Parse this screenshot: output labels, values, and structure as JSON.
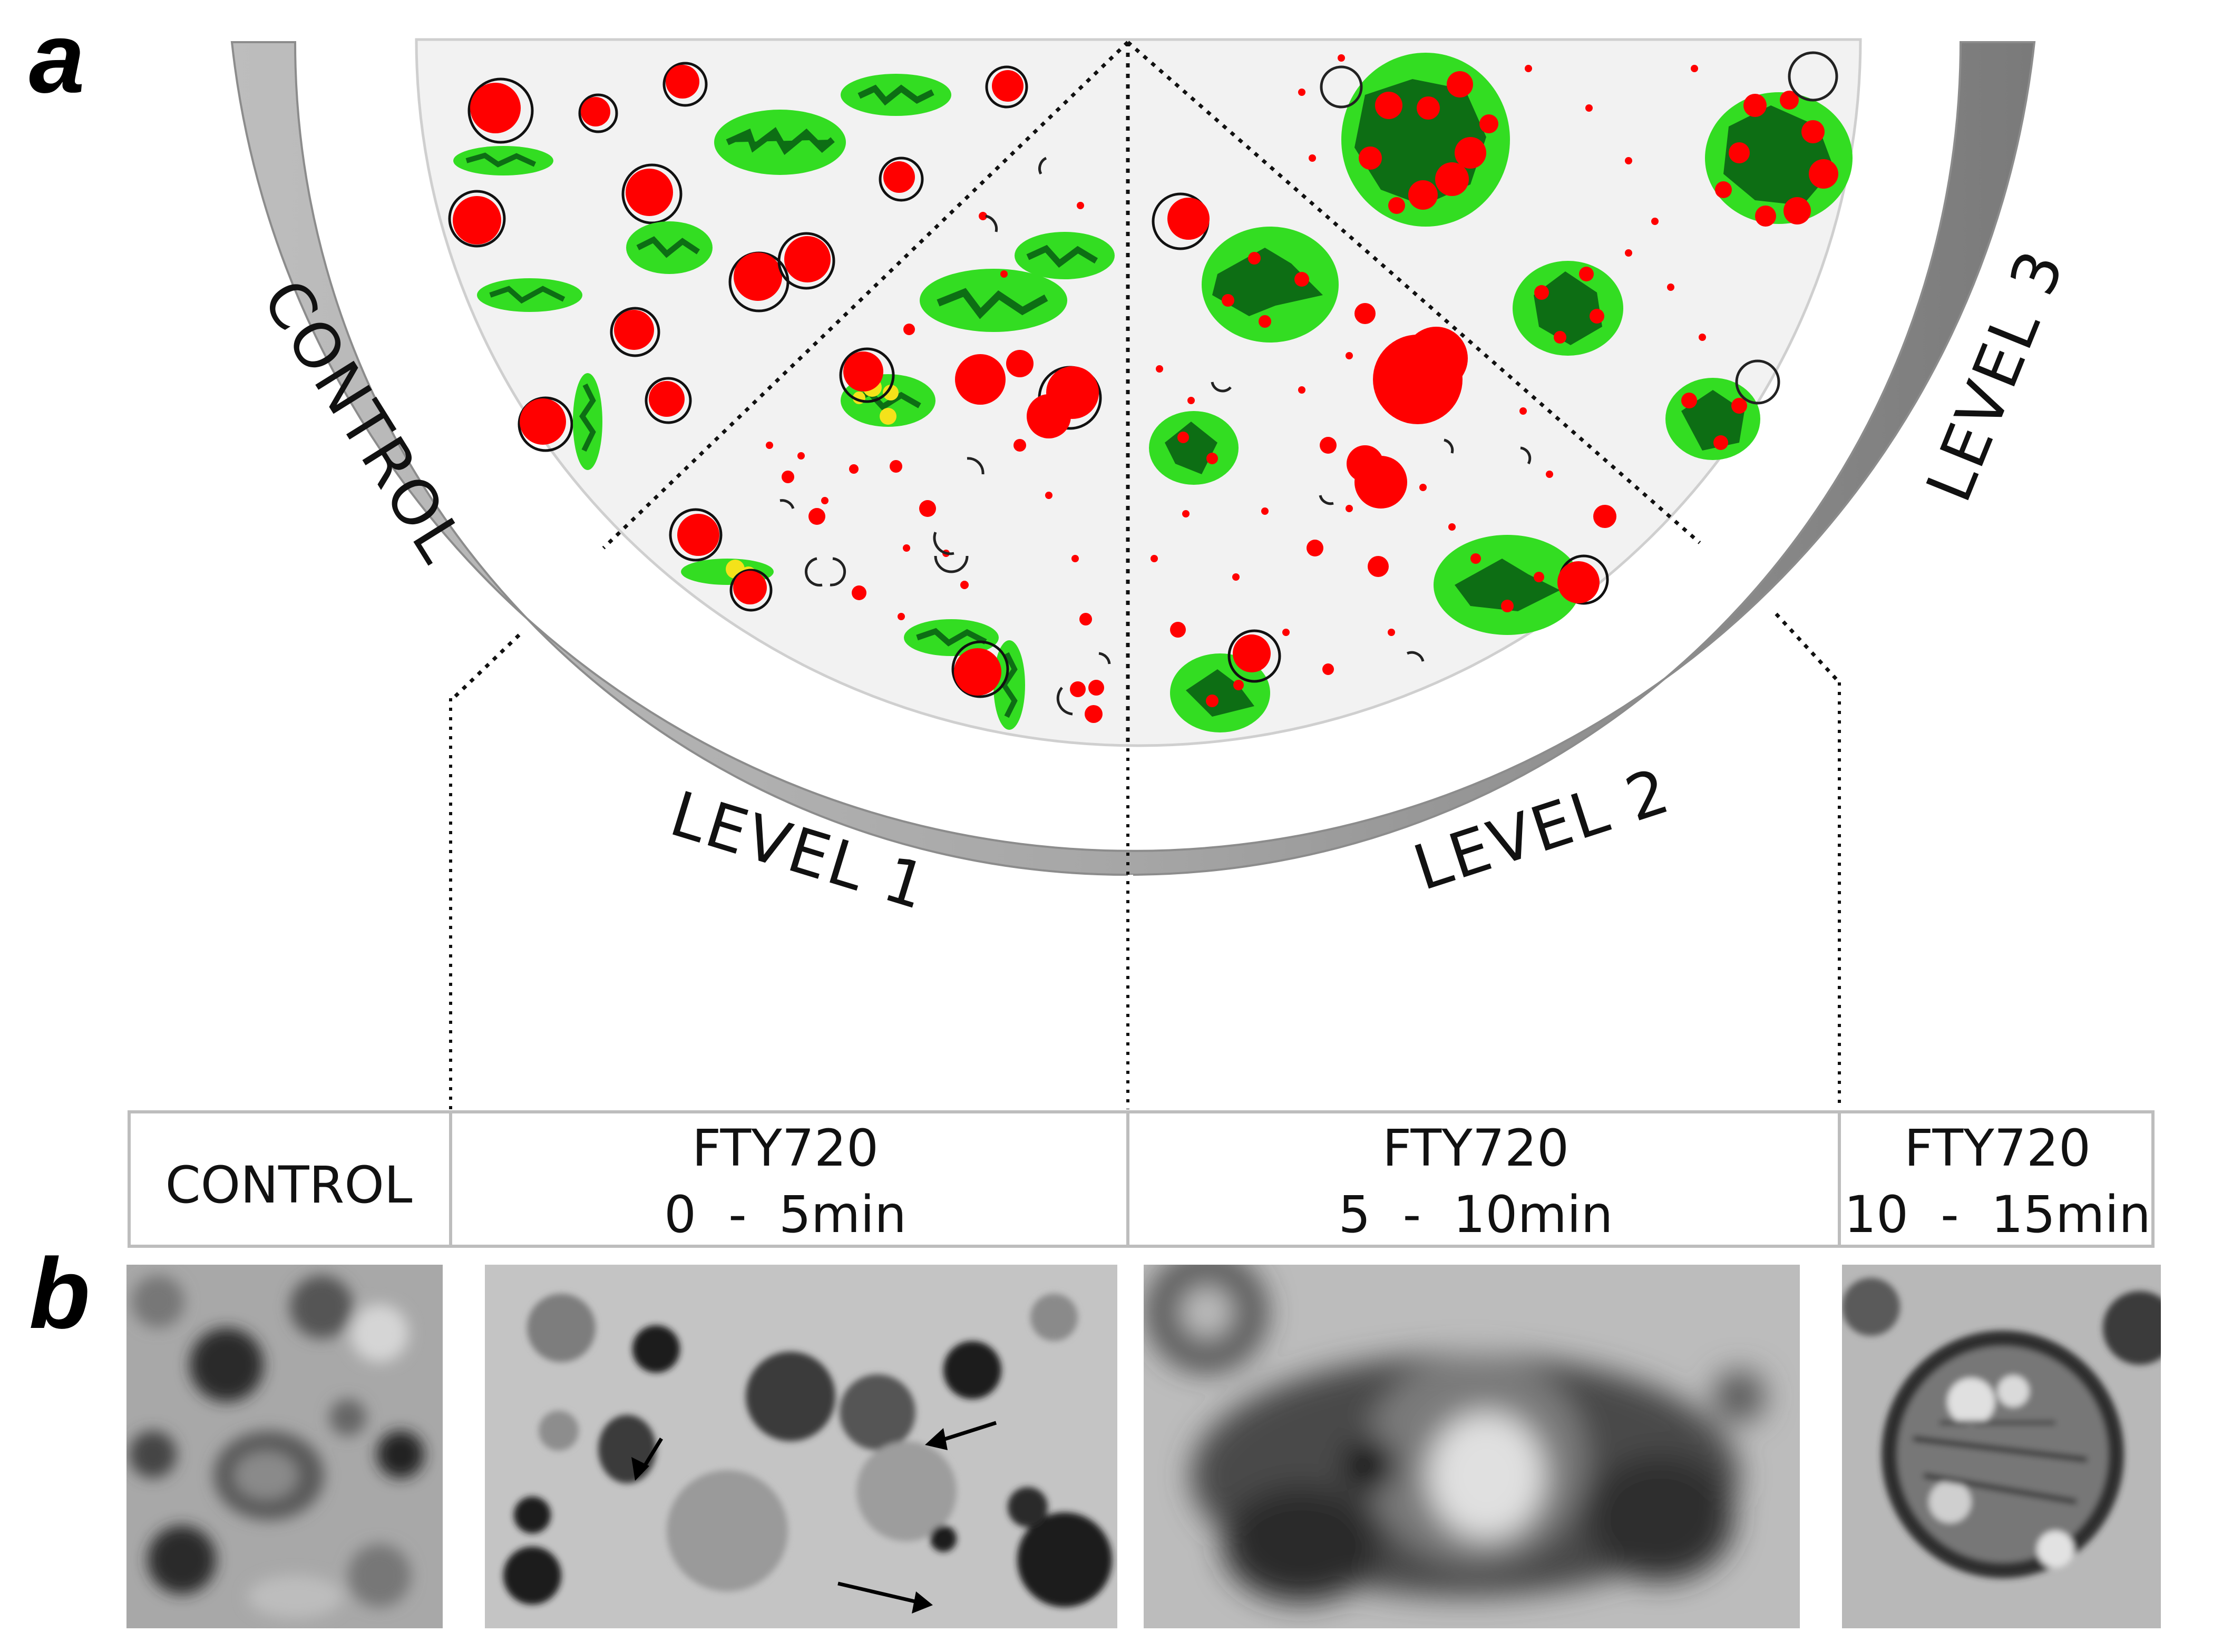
{
  "panel_a_letter": "a",
  "panel_b_letter": "b",
  "ring_labels": {
    "control": "CONTROL",
    "level1": "LEVEL 1",
    "level2": "LEVEL 2",
    "level3": "LEVEL 3"
  },
  "table": {
    "control": "CONTROL",
    "col1_line1": "FTY720",
    "col1_line2": "0  -  5min",
    "col2_line1": "FTY720",
    "col2_line2": "5  -  10min",
    "col3_line1": "FTY720",
    "col3_line2": "10  -  15min"
  },
  "colors": {
    "ring": "#9a9a9a",
    "ring_dark": "#7b7b7b",
    "disc": "#f2f2f2",
    "granule_red": "#ff0000",
    "mito_light_green": "#33dd22",
    "mito_dark_green": "#0d6e14",
    "yellow_vesicle": "#f4e21a"
  },
  "icons": {
    "granule": "red-granule-icon",
    "mitochondrion": "mitochondrion-icon",
    "membrane_fragment": "membrane-fragment-icon",
    "arrow": "arrow-icon"
  }
}
